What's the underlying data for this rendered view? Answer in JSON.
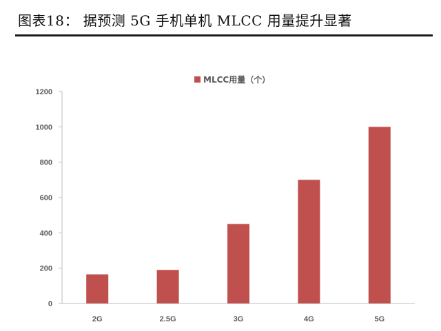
{
  "header": {
    "title": "图表18： 据预测 5G 手机单机 MLCC 用量提升显著"
  },
  "chart_data": {
    "type": "bar",
    "categories": [
      "2G",
      "2.5G",
      "3G",
      "4G",
      "5G"
    ],
    "series": [
      {
        "name": "MLCC用量（个）",
        "values": [
          165,
          190,
          450,
          700,
          1000
        ]
      }
    ],
    "yticks": [
      0,
      200,
      400,
      600,
      800,
      1000,
      1200
    ],
    "ylim": [
      0,
      1200
    ],
    "grid": false,
    "legend": "top-center",
    "bar_color": "#C0504D"
  }
}
